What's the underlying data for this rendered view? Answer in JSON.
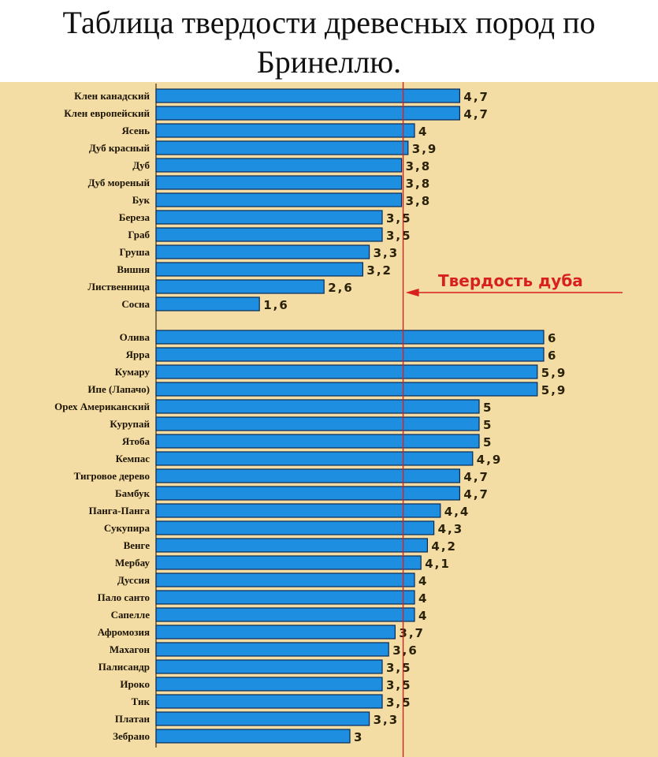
{
  "title": "Таблица твердости древесных пород по Бринеллю.",
  "colors": {
    "background": "#F4DDA4",
    "bar": "#1E8FE0",
    "bar_border": "#0a2a55",
    "reference": "#D82020"
  },
  "chart_data": {
    "type": "bar",
    "orientation": "horizontal",
    "groups": [
      {
        "categories": [
          "Клен канадский",
          "Клен европейский",
          "Ясень",
          "Дуб красный",
          "Дуб",
          "Дуб мореный",
          "Бук",
          "Береза",
          "Граб",
          "Груша",
          "Вишня",
          "Лиственница",
          "Сосна"
        ],
        "values": [
          4.7,
          4.7,
          4,
          3.9,
          3.8,
          3.8,
          3.8,
          3.5,
          3.5,
          3.3,
          3.2,
          2.6,
          1.6
        ],
        "value_labels": [
          "4,7",
          "4,7",
          "4",
          "3,9",
          "3,8",
          "3,8",
          "3,8",
          "3,5",
          "3,5",
          "3,3",
          "3,2",
          "2,6",
          "1,6"
        ]
      },
      {
        "categories": [
          "Олива",
          "Ярра",
          "Кумару",
          "Ипе (Лапачо)",
          "Орех Американский",
          "Курупай",
          "Ятоба",
          "Кемпас",
          "Тигровое дерево",
          "Бамбук",
          "Панга-Панга",
          "Сукупира",
          "Венге",
          "Мербау",
          "Дуссия",
          "Пало санто",
          "Сапелле",
          "Афромозия",
          "Махагон",
          "Палисандр",
          "Ироко",
          "Тик",
          "Платан",
          "Зебрано"
        ],
        "values": [
          6,
          6,
          5.9,
          5.9,
          5,
          5,
          5,
          4.9,
          4.7,
          4.7,
          4.4,
          4.3,
          4.2,
          4.1,
          4,
          4,
          4,
          3.7,
          3.6,
          3.5,
          3.5,
          3.5,
          3.3,
          3
        ],
        "value_labels": [
          "6",
          "6",
          "5,9",
          "5,9",
          "5",
          "5",
          "5",
          "4,9",
          "4,7",
          "4,7",
          "4,4",
          "4,3",
          "4,2",
          "4,1",
          "4",
          "4",
          "4",
          "3,7",
          "3,6",
          "3,5",
          "3,5",
          "3,5",
          "3,3",
          "3"
        ]
      }
    ],
    "reference_line": {
      "value": 3.8,
      "label": "Твердость дуба"
    },
    "xlim": [
      0,
      6
    ],
    "grid": false
  }
}
